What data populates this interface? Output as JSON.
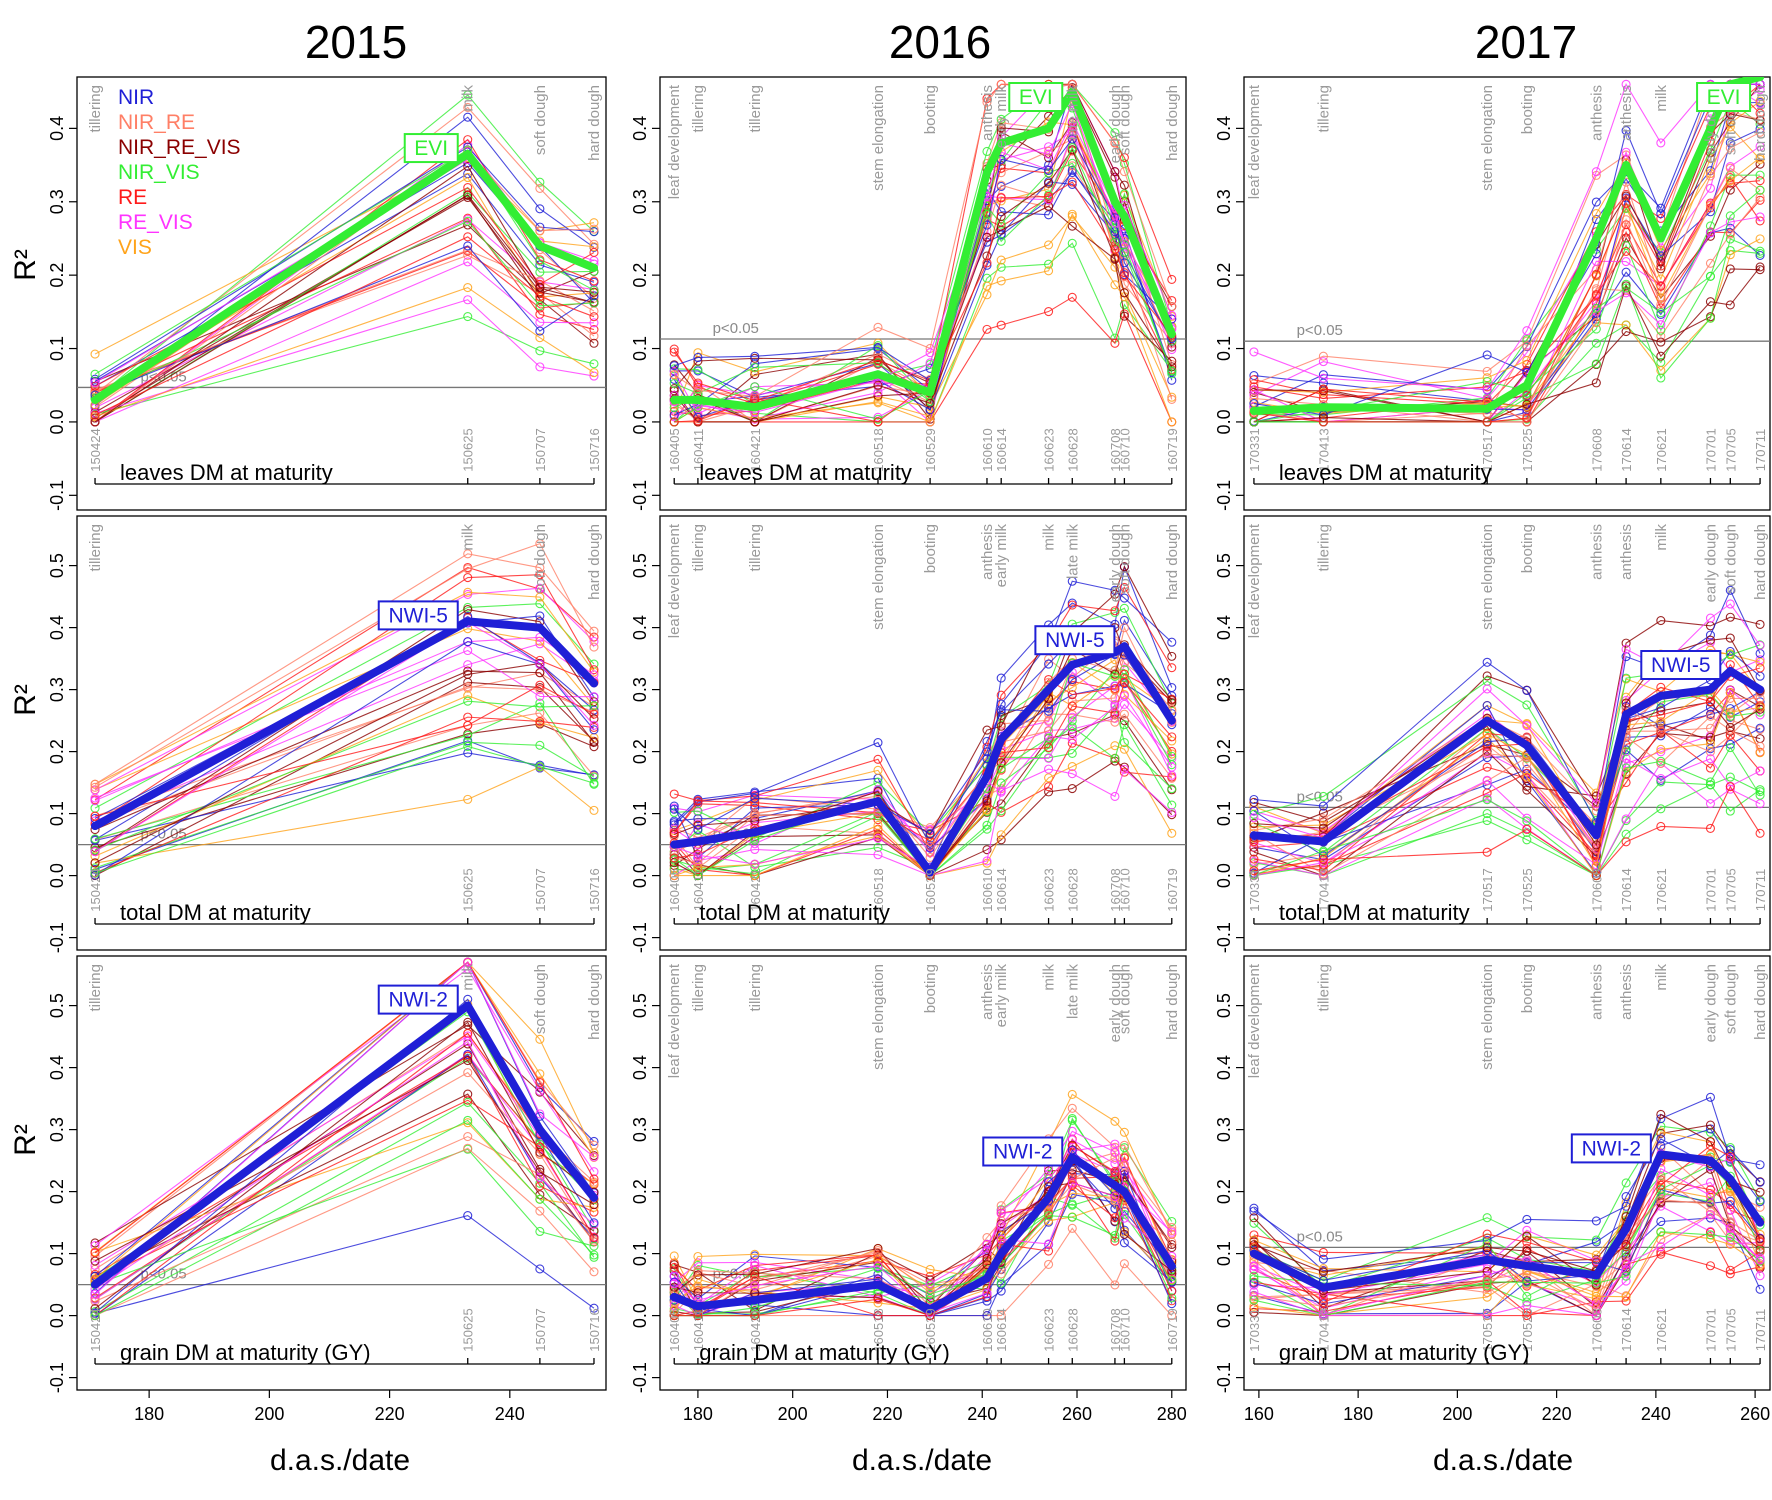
{
  "figure": {
    "years": [
      "2015",
      "2016",
      "2017"
    ],
    "y_axis_label": "R²",
    "x_axis_label": "d.a.s./date",
    "significance_label": "p<0.05",
    "legend": [
      {
        "name": "NIR",
        "color": "#1f1fd6"
      },
      {
        "name": "NIR_RE",
        "color": "#ff7f66"
      },
      {
        "name": "NIR_RE_VIS",
        "color": "#8b0000"
      },
      {
        "name": "NIR_VIS",
        "color": "#33ee33"
      },
      {
        "name": "RE",
        "color": "#ff1a1a"
      },
      {
        "name": "RE_VIS",
        "color": "#ff33ff"
      },
      {
        "name": "VIS",
        "color": "#ffa31a"
      }
    ]
  },
  "chart_data": [
    {
      "type": "line",
      "row": 0,
      "col": 0,
      "year": "2015",
      "trait": "leaves DM at maturity",
      "xlim": [
        168,
        256
      ],
      "ylim": [
        -0.12,
        0.47
      ],
      "yticks": [
        -0.1,
        0.0,
        0.1,
        0.2,
        0.3,
        0.4
      ],
      "xticks": [
        180,
        200,
        220,
        240
      ],
      "significance": 0.047,
      "stages": [
        "tillering",
        "milk",
        "soft dough",
        "hard dough"
      ],
      "x": [
        171,
        233,
        245,
        254
      ],
      "dates": [
        "150424",
        "150625",
        "150707",
        "150716"
      ],
      "highlight": {
        "name": "EVI",
        "color": "#33ee33",
        "values": [
          0.03,
          0.365,
          0.24,
          0.21
        ]
      }
    },
    {
      "type": "line",
      "row": 0,
      "col": 1,
      "year": "2016",
      "trait": "leaves DM at maturity",
      "xlim": [
        172,
        283
      ],
      "ylim": [
        -0.12,
        0.47
      ],
      "yticks": [
        -0.1,
        0.0,
        0.1,
        0.2,
        0.3,
        0.4
      ],
      "xticks": [
        180,
        200,
        220,
        240,
        260,
        280
      ],
      "significance": 0.113,
      "stages": [
        "leaf development",
        "tillering",
        "tillering",
        "stem elongation",
        "booting",
        "anthesis",
        "early milk",
        "milk",
        "late milk",
        "early dough",
        "soft dough",
        "hard dough"
      ],
      "x": [
        175,
        180,
        192,
        218,
        229,
        241,
        244,
        254,
        259,
        268,
        270,
        280
      ],
      "dates": [
        "160405",
        "160411",
        "160421",
        "160518",
        "160529",
        "160610",
        "160614",
        "160623",
        "160628",
        "160708",
        "160710",
        "160719"
      ],
      "highlight": {
        "name": "EVI",
        "color": "#33ee33",
        "values": [
          0.03,
          0.03,
          0.02,
          0.065,
          0.04,
          0.34,
          0.38,
          0.4,
          0.45,
          0.3,
          0.28,
          0.12
        ]
      }
    },
    {
      "type": "line",
      "row": 0,
      "col": 2,
      "year": "2017",
      "trait": "leaves DM at maturity",
      "xlim": [
        157,
        263
      ],
      "ylim": [
        -0.12,
        0.47
      ],
      "yticks": [
        -0.1,
        0.0,
        0.1,
        0.2,
        0.3,
        0.4
      ],
      "xticks": [
        160,
        180,
        200,
        220,
        240,
        260
      ],
      "significance": 0.11,
      "stages": [
        "leaf development",
        "tillering",
        "stem elongation",
        "booting",
        "anthesis",
        "anthesis",
        "milk",
        "early dough",
        "soft dough",
        "hard dough"
      ],
      "x": [
        159,
        173,
        206,
        214,
        228,
        234,
        241,
        251,
        255,
        261
      ],
      "dates": [
        "170331",
        "170413",
        "170517",
        "170525",
        "170608",
        "170614",
        "170621",
        "170701",
        "170705",
        "170711"
      ],
      "highlight": {
        "name": "EVI",
        "color": "#33ee33",
        "values": [
          0.015,
          0.02,
          0.018,
          0.05,
          0.25,
          0.35,
          0.25,
          0.4,
          0.46,
          0.47
        ]
      }
    },
    {
      "type": "line",
      "row": 1,
      "col": 0,
      "year": "2015",
      "trait": "total DM at maturity",
      "xlim": [
        168,
        256
      ],
      "ylim": [
        -0.12,
        0.58
      ],
      "yticks": [
        -0.1,
        0.0,
        0.1,
        0.2,
        0.3,
        0.4,
        0.5
      ],
      "xticks": [
        180,
        200,
        220,
        240
      ],
      "significance": 0.05,
      "stages": [
        "tillering",
        "milk",
        "soft dough",
        "hard dough"
      ],
      "x": [
        171,
        233,
        245,
        254
      ],
      "dates": [
        "150424",
        "150625",
        "150707",
        "150716"
      ],
      "highlight": {
        "name": "NWI-5",
        "color": "#1f1fd6",
        "values": [
          0.08,
          0.41,
          0.4,
          0.31
        ]
      }
    },
    {
      "type": "line",
      "row": 1,
      "col": 1,
      "year": "2016",
      "trait": "total DM at maturity",
      "xlim": [
        172,
        283
      ],
      "ylim": [
        -0.12,
        0.58
      ],
      "yticks": [
        -0.1,
        0.0,
        0.1,
        0.2,
        0.3,
        0.4,
        0.5
      ],
      "xticks": [
        180,
        200,
        220,
        240,
        260,
        280
      ],
      "significance": 0.05,
      "stages": [
        "leaf development",
        "tillering",
        "tillering",
        "stem elongation",
        "booting",
        "anthesis",
        "early milk",
        "milk",
        "late milk",
        "early dough",
        "soft dough",
        "hard dough"
      ],
      "x": [
        175,
        180,
        192,
        218,
        229,
        241,
        244,
        254,
        259,
        268,
        270,
        280
      ],
      "dates": [
        "160405",
        "160411",
        "160421",
        "160518",
        "160529",
        "160610",
        "160614",
        "160623",
        "160628",
        "160708",
        "160710",
        "160719"
      ],
      "highlight": {
        "name": "NWI-5",
        "color": "#1f1fd6",
        "values": [
          0.05,
          0.055,
          0.07,
          0.12,
          0.005,
          0.16,
          0.22,
          0.3,
          0.34,
          0.36,
          0.37,
          0.25
        ]
      }
    },
    {
      "type": "line",
      "row": 1,
      "col": 2,
      "year": "2017",
      "trait": "total DM at maturity",
      "xlim": [
        157,
        263
      ],
      "ylim": [
        -0.12,
        0.58
      ],
      "yticks": [
        -0.1,
        0.0,
        0.1,
        0.2,
        0.3,
        0.4,
        0.5
      ],
      "xticks": [
        160,
        180,
        200,
        220,
        240,
        260
      ],
      "significance": 0.11,
      "stages": [
        "leaf development",
        "tillering",
        "stem elongation",
        "booting",
        "anthesis",
        "anthesis",
        "milk",
        "early dough",
        "soft dough",
        "hard dough"
      ],
      "x": [
        159,
        173,
        206,
        214,
        228,
        234,
        241,
        251,
        255,
        261
      ],
      "dates": [
        "170331",
        "170413",
        "170517",
        "170525",
        "170608",
        "170614",
        "170621",
        "170701",
        "170705",
        "170711"
      ],
      "highlight": {
        "name": "NWI-5",
        "color": "#1f1fd6",
        "values": [
          0.065,
          0.055,
          0.25,
          0.21,
          0.065,
          0.26,
          0.29,
          0.3,
          0.33,
          0.3
        ]
      }
    },
    {
      "type": "line",
      "row": 2,
      "col": 0,
      "year": "2015",
      "trait": "grain DM at maturity (GY)",
      "xlim": [
        168,
        256
      ],
      "ylim": [
        -0.12,
        0.58
      ],
      "yticks": [
        -0.1,
        0.0,
        0.1,
        0.2,
        0.3,
        0.4,
        0.5
      ],
      "xticks": [
        180,
        200,
        220,
        240
      ],
      "significance": 0.05,
      "stages": [
        "tillering",
        "milk",
        "soft dough",
        "hard dough"
      ],
      "x": [
        171,
        233,
        245,
        254
      ],
      "dates": [
        "150424",
        "150625",
        "150707",
        "150716"
      ],
      "highlight": {
        "name": "NWI-2",
        "color": "#1f1fd6",
        "values": [
          0.05,
          0.5,
          0.3,
          0.19
        ]
      }
    },
    {
      "type": "line",
      "row": 2,
      "col": 1,
      "year": "2016",
      "trait": "grain DM at maturity (GY)",
      "xlim": [
        172,
        283
      ],
      "ylim": [
        -0.12,
        0.58
      ],
      "yticks": [
        -0.1,
        0.0,
        0.1,
        0.2,
        0.3,
        0.4,
        0.5
      ],
      "xticks": [
        180,
        200,
        220,
        240,
        260,
        280
      ],
      "significance": 0.05,
      "stages": [
        "leaf development",
        "tillering",
        "tillering",
        "stem elongation",
        "booting",
        "anthesis",
        "early milk",
        "milk",
        "late milk",
        "early dough",
        "soft dough",
        "hard dough"
      ],
      "x": [
        175,
        180,
        192,
        218,
        229,
        241,
        244,
        254,
        259,
        268,
        270,
        280
      ],
      "dates": [
        "160405",
        "160411",
        "160421",
        "160518",
        "160529",
        "160610",
        "160614",
        "160623",
        "160628",
        "160708",
        "160710",
        "160719"
      ],
      "highlight": {
        "name": "NWI-2",
        "color": "#1f1fd6",
        "values": [
          0.03,
          0.015,
          0.025,
          0.05,
          0.01,
          0.06,
          0.1,
          0.19,
          0.255,
          0.21,
          0.2,
          0.08
        ]
      }
    },
    {
      "type": "line",
      "row": 2,
      "col": 2,
      "year": "2017",
      "trait": "grain DM at maturity (GY)",
      "xlim": [
        157,
        263
      ],
      "ylim": [
        -0.12,
        0.58
      ],
      "yticks": [
        -0.1,
        0.0,
        0.1,
        0.2,
        0.3,
        0.4,
        0.5
      ],
      "xticks": [
        160,
        180,
        200,
        220,
        240,
        260
      ],
      "significance": 0.11,
      "stages": [
        "leaf development",
        "tillering",
        "stem elongation",
        "booting",
        "anthesis",
        "anthesis",
        "milk",
        "early dough",
        "soft dough",
        "hard dough"
      ],
      "x": [
        159,
        173,
        206,
        214,
        228,
        234,
        241,
        251,
        255,
        261
      ],
      "dates": [
        "170331",
        "170413",
        "170517",
        "170525",
        "170608",
        "170614",
        "170621",
        "170701",
        "170705",
        "170711"
      ],
      "highlight": {
        "name": "NWI-2",
        "color": "#1f1fd6",
        "values": [
          0.1,
          0.045,
          0.09,
          0.08,
          0.065,
          0.14,
          0.26,
          0.25,
          0.22,
          0.15
        ]
      }
    }
  ]
}
